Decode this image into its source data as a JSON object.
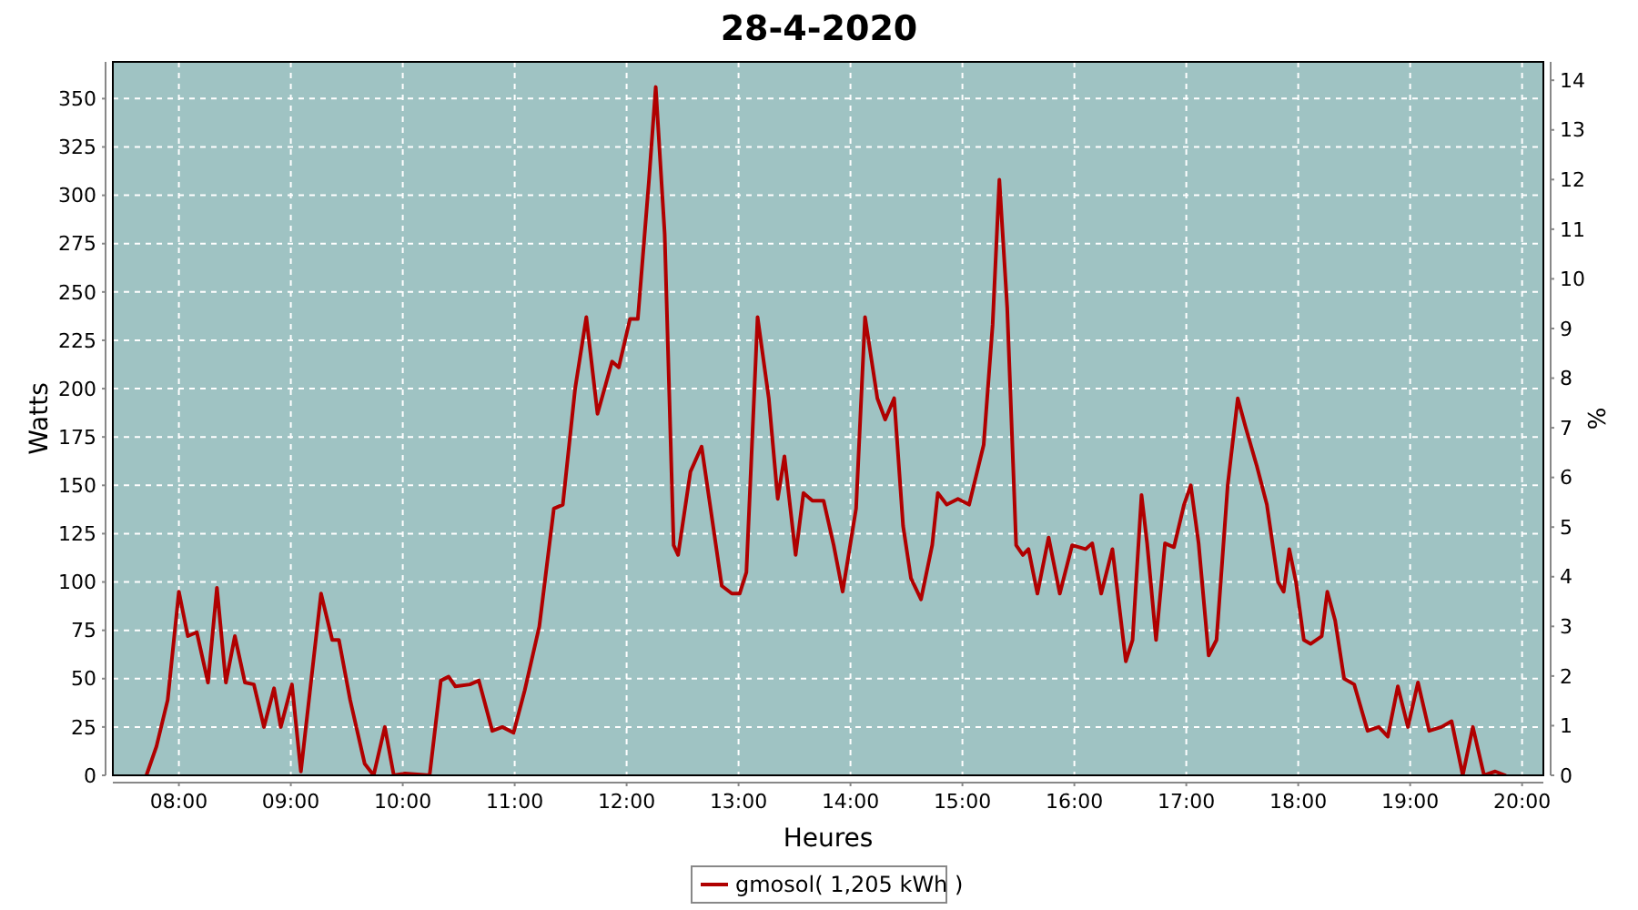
{
  "chart_data": {
    "type": "line",
    "title": "28-4-2020",
    "xlabel": "Heures",
    "ylabel": "Watts",
    "y2label": "%",
    "xlim": [
      7.41,
      20.19
    ],
    "xticks": [
      {
        "value": 8,
        "label": "08:00"
      },
      {
        "value": 9,
        "label": "09:00"
      },
      {
        "value": 10,
        "label": "10:00"
      },
      {
        "value": 11,
        "label": "11:00"
      },
      {
        "value": 12,
        "label": "12:00"
      },
      {
        "value": 13,
        "label": "13:00"
      },
      {
        "value": 14,
        "label": "14:00"
      },
      {
        "value": 15,
        "label": "15:00"
      },
      {
        "value": 16,
        "label": "16:00"
      },
      {
        "value": 17,
        "label": "17:00"
      },
      {
        "value": 18,
        "label": "18:00"
      },
      {
        "value": 19,
        "label": "19:00"
      },
      {
        "value": 20,
        "label": "20:00"
      }
    ],
    "ylim": [
      0,
      369
    ],
    "yticks": [
      0,
      25,
      50,
      75,
      100,
      125,
      150,
      175,
      200,
      225,
      250,
      275,
      300,
      325,
      350
    ],
    "y2lim": [
      0,
      14.37
    ],
    "y2ticks": [
      0,
      1,
      2,
      3,
      4,
      5,
      6,
      7,
      8,
      9,
      10,
      11,
      12,
      13,
      14
    ],
    "grid": true,
    "legend": "bottom",
    "marker": "none",
    "line_style": "solid",
    "series": [
      {
        "name": "gmosol( 1,205 kWh )",
        "color": "#b00000",
        "x": [
          7.71,
          7.8,
          7.9,
          8.0,
          8.08,
          8.16,
          8.26,
          8.34,
          8.42,
          8.5,
          8.59,
          8.67,
          8.76,
          8.85,
          8.91,
          9.01,
          9.09,
          9.17,
          9.27,
          9.37,
          9.43,
          9.53,
          9.66,
          9.74,
          9.84,
          9.92,
          10.02,
          10.24,
          10.34,
          10.41,
          10.47,
          10.6,
          10.68,
          10.8,
          10.89,
          10.99,
          11.09,
          11.22,
          11.35,
          11.43,
          11.54,
          11.64,
          11.74,
          11.87,
          11.93,
          12.03,
          12.1,
          12.2,
          12.26,
          12.34,
          12.42,
          12.46,
          12.57,
          12.67,
          12.75,
          12.85,
          12.94,
          13.01,
          13.07,
          13.17,
          13.27,
          13.35,
          13.41,
          13.51,
          13.58,
          13.66,
          13.76,
          13.85,
          13.93,
          14.05,
          14.13,
          14.24,
          14.31,
          14.39,
          14.47,
          14.54,
          14.63,
          14.73,
          14.78,
          14.86,
          14.96,
          15.06,
          15.19,
          15.27,
          15.33,
          15.4,
          15.48,
          15.54,
          15.59,
          15.67,
          15.77,
          15.87,
          15.98,
          16.1,
          16.16,
          16.24,
          16.34,
          16.46,
          16.52,
          16.6,
          16.65,
          16.73,
          16.81,
          16.89,
          16.98,
          17.04,
          17.11,
          17.2,
          17.27,
          17.37,
          17.46,
          17.53,
          17.63,
          17.72,
          17.82,
          17.87,
          17.92,
          17.98,
          18.05,
          18.11,
          18.21,
          18.26,
          18.33,
          18.41,
          18.5,
          18.62,
          18.72,
          18.8,
          18.89,
          18.98,
          19.07,
          19.17,
          19.28,
          19.37,
          19.47,
          19.56,
          19.66,
          19.76,
          19.85
        ],
        "values": [
          0,
          15,
          39,
          95,
          72,
          74,
          48,
          97,
          48,
          72,
          48,
          47,
          25,
          45,
          25,
          47,
          2,
          43,
          94,
          70,
          70,
          39,
          6,
          0,
          25,
          0,
          1,
          0,
          49,
          51,
          46,
          47,
          49,
          23,
          25,
          22,
          44,
          77,
          138,
          140,
          200,
          237,
          187,
          214,
          211,
          236,
          236,
          308,
          356,
          280,
          119,
          114,
          157,
          170,
          138,
          98,
          94,
          94,
          105,
          237,
          195,
          143,
          165,
          114,
          146,
          142,
          142,
          119,
          95,
          138,
          237,
          195,
          184,
          195,
          129,
          102,
          91,
          119,
          146,
          140,
          143,
          140,
          171,
          233,
          308,
          242,
          119,
          114,
          117,
          94,
          123,
          94,
          119,
          117,
          120,
          94,
          117,
          59,
          70,
          145,
          120,
          70,
          120,
          118,
          140,
          150,
          120,
          62,
          70,
          150,
          195,
          180,
          160,
          140,
          100,
          95,
          117,
          100,
          70,
          68,
          72,
          95,
          80,
          50,
          47,
          23,
          25,
          20,
          46,
          25,
          48,
          23,
          25,
          28,
          0,
          25,
          0,
          2,
          0
        ]
      }
    ]
  }
}
